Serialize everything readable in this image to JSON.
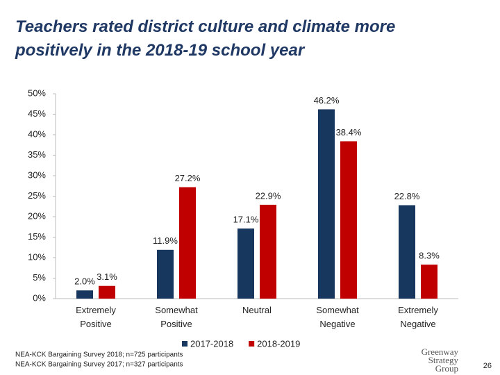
{
  "chart_data": {
    "type": "bar",
    "title_lines": [
      "Teachers rated district culture and climate more",
      "positively in the 2018-19 school year"
    ],
    "categories": [
      "Extremely Positive",
      "Somewhat Positive",
      "Neutral",
      "Somewhat Negative",
      "Extremely Negative"
    ],
    "series": [
      {
        "name": "2017-2018",
        "color": "#17375e",
        "values": [
          2.0,
          11.9,
          17.1,
          46.2,
          22.8
        ],
        "value_labels": [
          "2.0%",
          "11.9%",
          "17.1%",
          "46.2%",
          "22.8%"
        ]
      },
      {
        "name": "2018-2019",
        "color": "#c00000",
        "values": [
          3.1,
          27.2,
          22.9,
          38.4,
          8.3
        ],
        "value_labels": [
          "3.1%",
          "27.2%",
          "22.9%",
          "38.4%",
          "8.3%"
        ]
      }
    ],
    "ylim": [
      0,
      50
    ],
    "yticks": [
      {
        "value": 0,
        "label": "0%"
      },
      {
        "value": 5,
        "label": "5%"
      },
      {
        "value": 10,
        "label": "10%"
      },
      {
        "value": 15,
        "label": "15%"
      },
      {
        "value": 20,
        "label": "20%"
      },
      {
        "value": 25,
        "label": "25%"
      },
      {
        "value": 30,
        "label": "30%"
      },
      {
        "value": 35,
        "label": "35%"
      },
      {
        "value": 40,
        "label": "40%"
      },
      {
        "value": 45,
        "label": "45%"
      },
      {
        "value": 50,
        "label": "50%"
      }
    ],
    "grid": false,
    "legend": "bottom",
    "notes": [
      "NEA-KCK Bargaining Survey 2018; n=725 participants",
      "NEA-KCK Bargaining Survey 2017; n=327 participants"
    ],
    "logo": [
      "Greenway",
      "Strategy",
      "Group"
    ],
    "page_number": "26"
  }
}
